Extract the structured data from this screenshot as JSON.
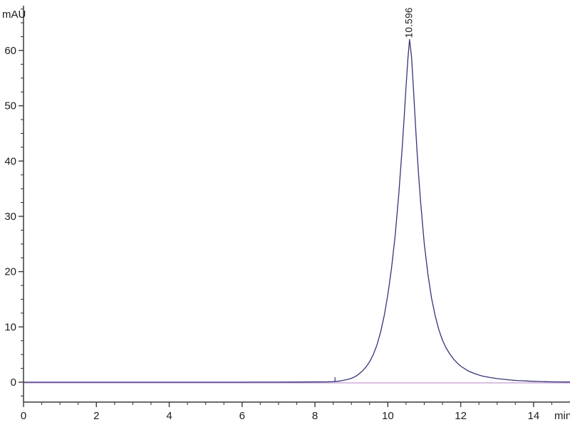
{
  "chart_data": {
    "type": "line",
    "title": "",
    "xlabel": "min",
    "ylabel": "mAU",
    "xlim": [
      0,
      15
    ],
    "ylim": [
      -3.6,
      68.1
    ],
    "x_major_ticks": [
      "0",
      "2",
      "4",
      "6",
      "8",
      "10",
      "12",
      "14"
    ],
    "x_major_values": [
      0,
      2,
      4,
      6,
      8,
      10,
      12,
      14
    ],
    "x_minor_step": 0.5,
    "y_major_ticks": [
      "0",
      "10",
      "20",
      "30",
      "40",
      "50",
      "60"
    ],
    "y_major_values": [
      0,
      10,
      20,
      30,
      40,
      50,
      60
    ],
    "y_minor_step": 2.5,
    "grid": false,
    "legend": null,
    "colors": {
      "signal": "#343477",
      "baseline": "#c79ad0",
      "axis": "#3a3a3a",
      "text": "#1c1c1c"
    },
    "peaks": [
      {
        "label": "10.596",
        "retention_min": 10.596,
        "height_mAU": 62.0
      }
    ],
    "integration_marks": [
      {
        "x_min": 8.55
      }
    ],
    "series": [
      {
        "name": "detector-signal",
        "color_key": "signal",
        "points": [
          [
            0,
            0
          ],
          [
            0.5,
            0
          ],
          [
            1,
            0
          ],
          [
            1.5,
            0
          ],
          [
            2,
            0
          ],
          [
            2.5,
            0
          ],
          [
            3,
            0
          ],
          [
            3.5,
            0
          ],
          [
            4,
            0
          ],
          [
            4.5,
            0
          ],
          [
            5,
            0
          ],
          [
            5.5,
            0
          ],
          [
            6,
            0.01
          ],
          [
            6.5,
            0.02
          ],
          [
            7,
            0.02
          ],
          [
            7.5,
            0.03
          ],
          [
            8,
            0.04
          ],
          [
            8.3,
            0.06
          ],
          [
            8.5,
            0.1
          ],
          [
            8.7,
            0.22
          ],
          [
            8.9,
            0.5
          ],
          [
            9.0,
            0.7
          ],
          [
            9.1,
            1.0
          ],
          [
            9.2,
            1.45
          ],
          [
            9.3,
            2.0
          ],
          [
            9.4,
            2.75
          ],
          [
            9.5,
            3.7
          ],
          [
            9.6,
            5.0
          ],
          [
            9.7,
            6.7
          ],
          [
            9.8,
            9.0
          ],
          [
            9.9,
            12.0
          ],
          [
            10.0,
            15.8
          ],
          [
            10.1,
            20.5
          ],
          [
            10.2,
            26.5
          ],
          [
            10.3,
            34.0
          ],
          [
            10.4,
            43.0
          ],
          [
            10.45,
            48.0
          ],
          [
            10.5,
            53.5
          ],
          [
            10.55,
            58.5
          ],
          [
            10.596,
            62.0
          ],
          [
            10.65,
            58.8
          ],
          [
            10.7,
            53.5
          ],
          [
            10.75,
            47.5
          ],
          [
            10.8,
            42.0
          ],
          [
            10.85,
            37.0
          ],
          [
            10.9,
            32.5
          ],
          [
            11.0,
            25.0
          ],
          [
            11.1,
            19.5
          ],
          [
            11.2,
            15.2
          ],
          [
            11.3,
            12.0
          ],
          [
            11.4,
            9.5
          ],
          [
            11.5,
            7.6
          ],
          [
            11.6,
            6.2
          ],
          [
            11.7,
            5.1
          ],
          [
            11.8,
            4.2
          ],
          [
            11.9,
            3.5
          ],
          [
            12.0,
            2.9
          ],
          [
            12.2,
            2.05
          ],
          [
            12.4,
            1.5
          ],
          [
            12.6,
            1.1
          ],
          [
            12.8,
            0.85
          ],
          [
            13.0,
            0.65
          ],
          [
            13.2,
            0.5
          ],
          [
            13.4,
            0.38
          ],
          [
            13.6,
            0.28
          ],
          [
            13.8,
            0.22
          ],
          [
            14.0,
            0.16
          ],
          [
            14.3,
            0.1
          ],
          [
            14.6,
            0.06
          ],
          [
            15.0,
            0.03
          ]
        ]
      },
      {
        "name": "reference-baseline",
        "color_key": "baseline",
        "points": [
          [
            0,
            -0.12
          ],
          [
            15,
            -0.12
          ]
        ]
      }
    ]
  }
}
